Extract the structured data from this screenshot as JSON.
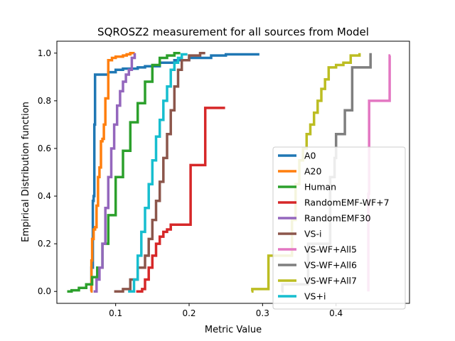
{
  "chart_data": {
    "type": "line",
    "title": "SQROSZ2 measurement for all sources from Model",
    "xlabel": "Metric Value",
    "ylabel": "Empirical Distribution function",
    "xlim": [
      0.02,
      0.5
    ],
    "ylim": [
      -0.05,
      1.05
    ],
    "xticks": [
      0.1,
      0.2,
      0.3,
      0.4
    ],
    "xtick_labels": [
      "0.1",
      "0.2",
      "0.3",
      "0.4"
    ],
    "yticks": [
      0.0,
      0.2,
      0.4,
      0.6,
      0.8,
      1.0
    ],
    "ytick_labels": [
      "0.0",
      "0.2",
      "0.4",
      "0.6",
      "0.8",
      "1.0"
    ],
    "grid": false,
    "legend_position": "lower-right",
    "series": [
      {
        "name": "A0",
        "color": "#1f77b4",
        "x": [
          0.066,
          0.067,
          0.069,
          0.07,
          0.071,
          0.072,
          0.09,
          0.1,
          0.11,
          0.13,
          0.14,
          0.16,
          0.18,
          0.2,
          0.23,
          0.25,
          0.294
        ],
        "y": [
          0.0,
          0.1,
          0.38,
          0.4,
          0.7,
          0.91,
          0.92,
          0.93,
          0.935,
          0.94,
          0.945,
          0.96,
          0.97,
          0.98,
          0.99,
          0.995,
          1.0
        ]
      },
      {
        "name": "A20",
        "color": "#ff7f0e",
        "x": [
          0.066,
          0.067,
          0.068,
          0.07,
          0.072,
          0.074,
          0.076,
          0.078,
          0.08,
          0.082,
          0.084,
          0.086,
          0.088,
          0.09,
          0.095,
          0.1,
          0.11,
          0.115,
          0.12,
          0.126
        ],
        "y": [
          0.0,
          0.13,
          0.22,
          0.26,
          0.27,
          0.36,
          0.48,
          0.52,
          0.63,
          0.64,
          0.7,
          0.81,
          0.81,
          0.97,
          0.98,
          0.985,
          0.99,
          0.995,
          1.0,
          1.0
        ]
      },
      {
        "name": "Human",
        "color": "#2ca02c",
        "x": [
          0.034,
          0.04,
          0.05,
          0.06,
          0.068,
          0.075,
          0.082,
          0.09,
          0.1,
          0.11,
          0.12,
          0.13,
          0.14,
          0.15,
          0.16,
          0.17,
          0.18,
          0.188
        ],
        "y": [
          0.0,
          0.005,
          0.015,
          0.03,
          0.06,
          0.1,
          0.2,
          0.32,
          0.48,
          0.59,
          0.71,
          0.79,
          0.88,
          0.95,
          0.98,
          0.99,
          1.0,
          1.0
        ]
      },
      {
        "name": "RandomEMF-WF+7",
        "color": "#d62728",
        "x": [
          0.128,
          0.133,
          0.136,
          0.14,
          0.145,
          0.15,
          0.155,
          0.16,
          0.165,
          0.17,
          0.175,
          0.18,
          0.2,
          0.202,
          0.22,
          0.222,
          0.249
        ],
        "y": [
          0.0,
          0.0,
          0.01,
          0.05,
          0.1,
          0.15,
          0.2,
          0.23,
          0.25,
          0.26,
          0.28,
          0.28,
          0.28,
          0.53,
          0.53,
          0.77,
          0.77
        ]
      },
      {
        "name": "RandomEMF30",
        "color": "#9467bd",
        "x": [
          0.07,
          0.074,
          0.078,
          0.082,
          0.086,
          0.09,
          0.094,
          0.098,
          0.102,
          0.106,
          0.11,
          0.114,
          0.118,
          0.122,
          0.126
        ],
        "y": [
          0.0,
          0.05,
          0.1,
          0.2,
          0.35,
          0.48,
          0.6,
          0.7,
          0.78,
          0.84,
          0.88,
          0.91,
          0.93,
          0.98,
          1.0
        ]
      },
      {
        "name": "VS-i",
        "color": "#8c564b",
        "x": [
          0.098,
          0.11,
          0.12,
          0.13,
          0.14,
          0.145,
          0.15,
          0.155,
          0.16,
          0.165,
          0.17,
          0.175,
          0.18,
          0.185,
          0.19,
          0.2,
          0.215,
          0.222
        ],
        "y": [
          0.0,
          0.01,
          0.05,
          0.1,
          0.15,
          0.22,
          0.3,
          0.38,
          0.46,
          0.56,
          0.66,
          0.76,
          0.86,
          0.93,
          0.97,
          0.99,
          1.0,
          1.0
        ]
      },
      {
        "name": "VS-WF+All5",
        "color": "#e377c2",
        "x": [
          0.444,
          0.444,
          0.445,
          0.445,
          0.473,
          0.473,
          0.474
        ],
        "y": [
          0.0,
          0.41,
          0.41,
          0.8,
          0.81,
          0.99,
          0.99
        ]
      },
      {
        "name": "VS-WF+All6",
        "color": "#7f7f7f",
        "x": [
          0.326,
          0.327,
          0.36,
          0.362,
          0.39,
          0.392,
          0.398,
          0.4,
          0.41,
          0.412,
          0.42,
          0.422,
          0.445,
          0.447
        ],
        "y": [
          0.0,
          0.03,
          0.03,
          0.2,
          0.2,
          0.48,
          0.56,
          0.66,
          0.66,
          0.76,
          0.76,
          0.94,
          0.94,
          1.0
        ]
      },
      {
        "name": "VS-WF+All7",
        "color": "#bcbd22",
        "x": [
          0.285,
          0.286,
          0.306,
          0.308,
          0.34,
          0.345,
          0.35,
          0.355,
          0.36,
          0.365,
          0.37,
          0.375,
          0.38,
          0.385,
          0.39,
          0.4,
          0.41,
          0.42,
          0.432
        ],
        "y": [
          0.0,
          0.01,
          0.01,
          0.15,
          0.3,
          0.45,
          0.55,
          0.6,
          0.66,
          0.7,
          0.75,
          0.8,
          0.85,
          0.89,
          0.94,
          0.95,
          0.96,
          0.99,
          1.0
        ]
      },
      {
        "name": "VS+i",
        "color": "#17becf",
        "x": [
          0.117,
          0.125,
          0.13,
          0.135,
          0.14,
          0.145,
          0.15,
          0.155,
          0.16,
          0.165,
          0.17,
          0.175,
          0.18,
          0.185,
          0.19,
          0.196
        ],
        "y": [
          0.0,
          0.05,
          0.15,
          0.25,
          0.35,
          0.45,
          0.55,
          0.65,
          0.72,
          0.8,
          0.86,
          0.93,
          0.96,
          0.98,
          0.995,
          1.0
        ]
      }
    ]
  }
}
